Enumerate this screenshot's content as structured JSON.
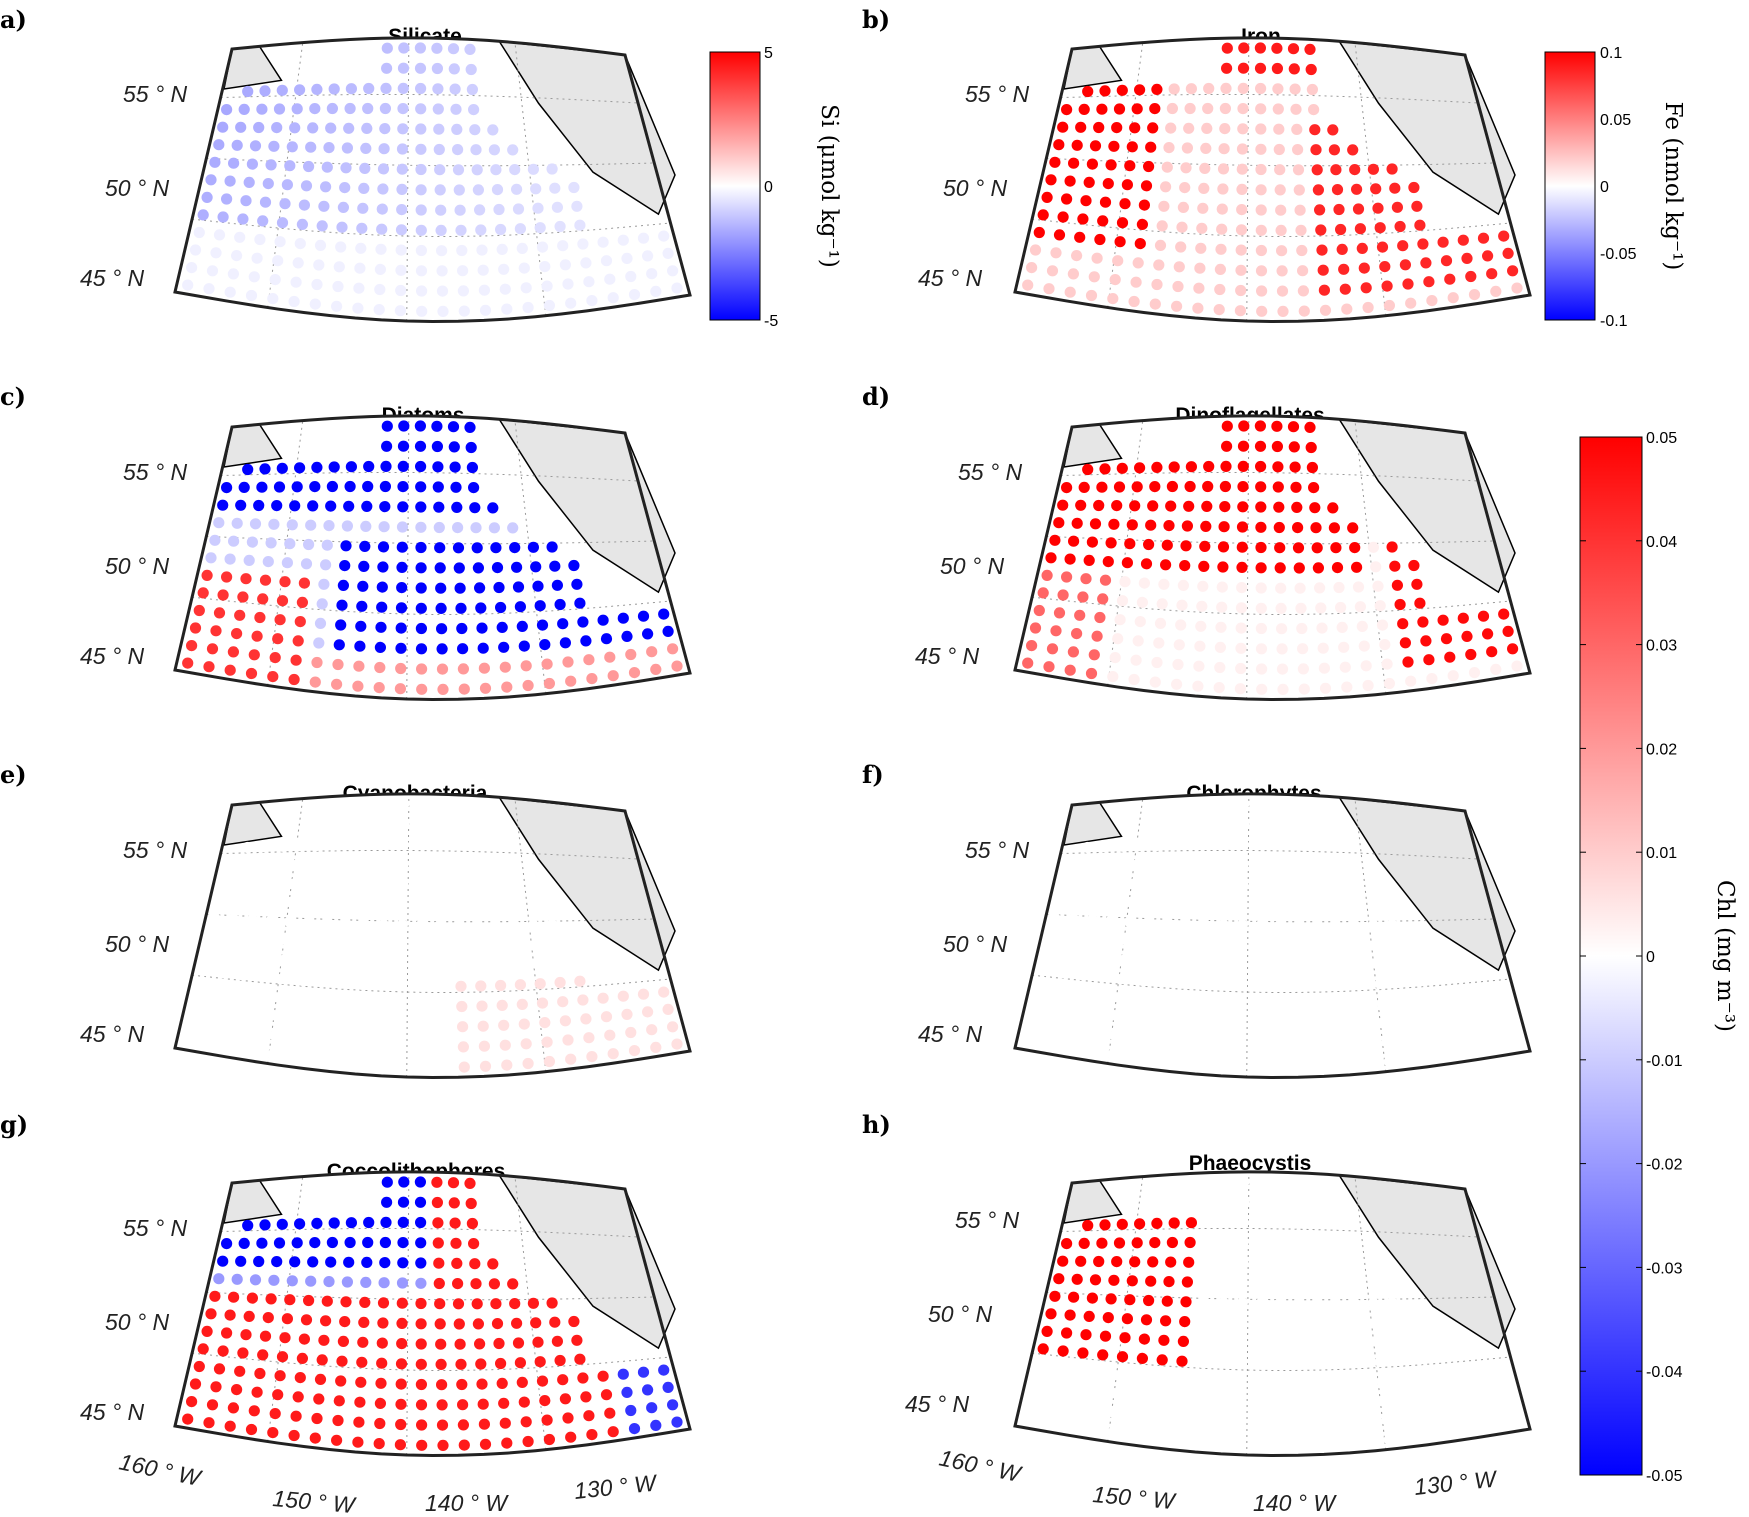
{
  "colors": {
    "negative": "#0000ff",
    "zero": "#ffffff",
    "positive": "#ff0000",
    "land": "#e6e6e6",
    "grid": "#9a9a9a"
  },
  "axes": {
    "lat_labels": [
      "55 ° N",
      "50 ° N",
      "45 ° N"
    ],
    "lon_labels": [
      "160 ° W",
      "150 ° W",
      "140 ° W",
      "130 ° W"
    ]
  },
  "colorbars": [
    {
      "id": "si",
      "title": "Si (μmol kg⁻¹)",
      "ticks": [
        "5",
        "0",
        "-5"
      ],
      "range": [
        -5,
        5
      ]
    },
    {
      "id": "fe",
      "title": "Fe (nmol kg⁻¹)",
      "ticks": [
        "0.1",
        "0.05",
        "0",
        "-0.05",
        "-0.1"
      ],
      "range": [
        -0.1,
        0.1
      ]
    },
    {
      "id": "chl",
      "title": "Chl (mg m⁻³)",
      "ticks": [
        "0.05",
        "0.04",
        "0.03",
        "0.02",
        "0.01",
        "0",
        "-0.01",
        "-0.02",
        "-0.03",
        "-0.04",
        "-0.05"
      ],
      "range": [
        -0.05,
        0.05
      ]
    }
  ],
  "chart_data": [
    {
      "type": "heatmap",
      "panel": "a)",
      "title": "Silicate",
      "variable": "Si",
      "units": "μmol kg⁻¹",
      "lat_range": [
        44,
        57
      ],
      "lon_range": [
        -160,
        -127
      ],
      "pattern": "negative across most of the domain (about -2 in the northwest, -0.5 to -1 elsewhere), near zero in the south",
      "typical_value_range": [
        -2,
        0
      ]
    },
    {
      "type": "heatmap",
      "panel": "b)",
      "title": "Iron",
      "variable": "Fe",
      "units": "nmol kg⁻¹",
      "lat_range": [
        44,
        57
      ],
      "lon_range": [
        -160,
        -127
      ],
      "pattern": "positive everywhere; strongest (~0.1) in the western band, along the northern edge and the eastern coastal band; weak (~0.01-0.03) in the centre and south",
      "typical_value_range": [
        0,
        0.1
      ]
    },
    {
      "type": "heatmap",
      "panel": "c)",
      "title": "Diatoms",
      "variable": "Chl",
      "units": "mg m⁻³",
      "lat_range": [
        44,
        57
      ],
      "lon_range": [
        -160,
        -127
      ],
      "pattern": "strong decrease (~-0.05) in the north and the south-central / eastern region, increase (~+0.04) in the southwest, weak positive in the south",
      "typical_value_range": [
        -0.05,
        0.04
      ]
    },
    {
      "type": "heatmap",
      "panel": "d)",
      "title": "Dinoflagellates",
      "variable": "Chl",
      "units": "mg m⁻³",
      "lat_range": [
        44,
        57
      ],
      "lon_range": [
        -160,
        -127
      ],
      "pattern": "strong increase (~+0.05) across the north and west and along the eastern coast; near zero in the southern interior",
      "typical_value_range": [
        0,
        0.05
      ]
    },
    {
      "type": "heatmap",
      "panel": "e)",
      "title": "Cyanobacteria",
      "variable": "Chl",
      "units": "mg m⁻³",
      "lat_range": [
        44,
        57
      ],
      "lon_range": [
        -160,
        -127
      ],
      "pattern": "near zero everywhere; weak positive (~+0.005) in the southeast",
      "typical_value_range": [
        -0.002,
        0.008
      ]
    },
    {
      "type": "heatmap",
      "panel": "f)",
      "title": "Chlorophytes",
      "variable": "Chl",
      "units": "mg m⁻³",
      "lat_range": [
        44,
        57
      ],
      "lon_range": [
        -160,
        -127
      ],
      "pattern": "no visible change",
      "typical_value_range": [
        0,
        0
      ]
    },
    {
      "type": "heatmap",
      "panel": "g)",
      "title": "Coccolithophores",
      "variable": "Chl",
      "units": "mg m⁻³",
      "lat_range": [
        44,
        57
      ],
      "lon_range": [
        -160,
        -127
      ],
      "pattern": "decrease (~-0.05) in the north and northwest, strong increase (~+0.045) across the centre and south, decrease at the eastern edge",
      "typical_value_range": [
        -0.05,
        0.045
      ]
    },
    {
      "type": "heatmap",
      "panel": "h)",
      "title": "Phaeocystis",
      "variable": "Chl",
      "units": "mg m⁻³",
      "lat_range": [
        44,
        57
      ],
      "lon_range": [
        -160,
        -127
      ],
      "pattern": "increase (~+0.05) only in the northwest corner, zero elsewhere",
      "typical_value_range": [
        0,
        0.05
      ]
    }
  ]
}
